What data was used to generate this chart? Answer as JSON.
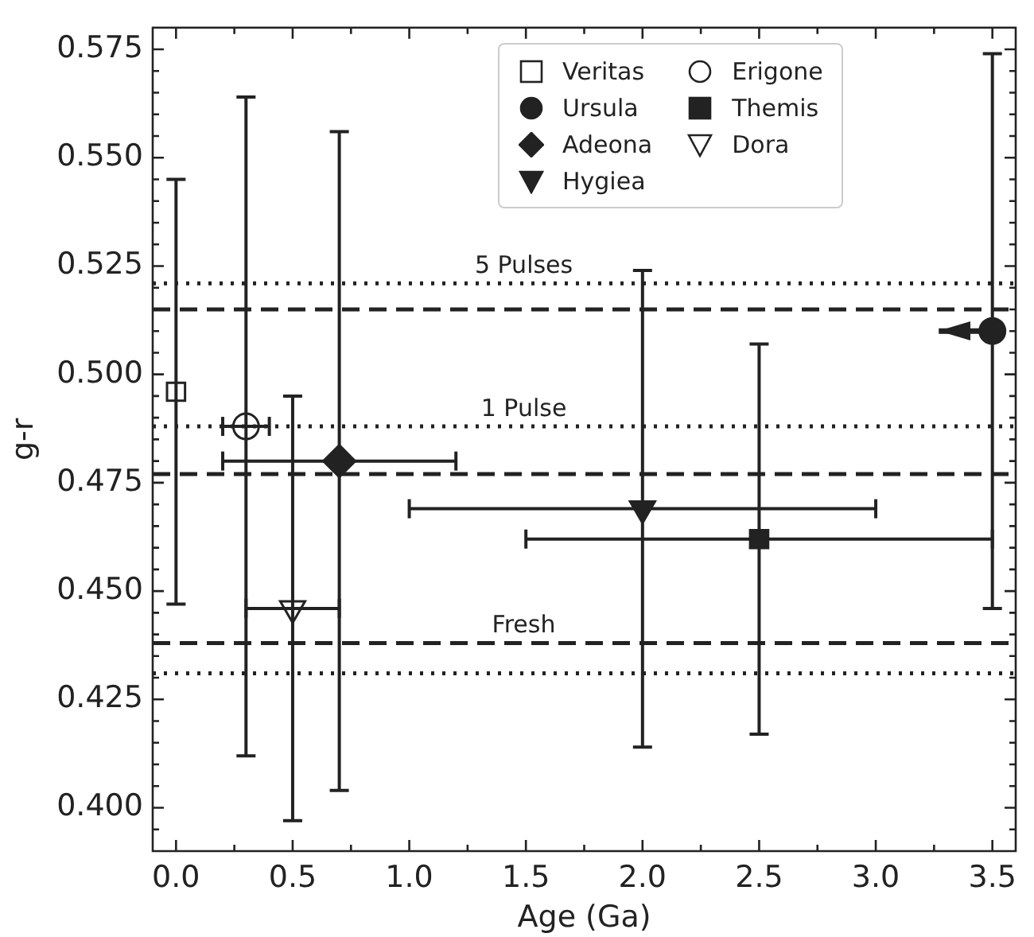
{
  "chart_data": {
    "type": "scatter",
    "xlabel": "Age (Ga)",
    "ylabel": "g-r",
    "xlim": [
      -0.1,
      3.6
    ],
    "xticks": [
      {
        "value": 0,
        "label": "0.0"
      },
      {
        "value": 0.25,
        "label": null
      },
      {
        "value": 0.5,
        "label": "0.5"
      },
      {
        "value": 0.75,
        "label": null
      },
      {
        "value": 1,
        "label": "1.0"
      },
      {
        "value": 1.25,
        "label": null
      },
      {
        "value": 1.5,
        "label": "1.5"
      },
      {
        "value": 1.75,
        "label": null
      },
      {
        "value": 2,
        "label": "2.0"
      },
      {
        "value": 2.25,
        "label": null
      },
      {
        "value": 2.5,
        "label": "2.5"
      },
      {
        "value": 2.75,
        "label": null
      },
      {
        "value": 3,
        "label": "3.0"
      },
      {
        "value": 3.25,
        "label": null
      },
      {
        "value": 3.5,
        "label": "3.5"
      }
    ],
    "ylim": [
      0.39,
      0.58
    ],
    "yticks": [
      {
        "value": 0.395,
        "label": null
      },
      {
        "value": 0.4,
        "label": "0.400"
      },
      {
        "value": 0.405,
        "label": null
      },
      {
        "value": 0.41,
        "label": null
      },
      {
        "value": 0.415,
        "label": null
      },
      {
        "value": 0.42,
        "label": null
      },
      {
        "value": 0.425,
        "label": "0.425"
      },
      {
        "value": 0.43,
        "label": null
      },
      {
        "value": 0.435,
        "label": null
      },
      {
        "value": 0.44,
        "label": null
      },
      {
        "value": 0.445,
        "label": null
      },
      {
        "value": 0.45,
        "label": "0.450"
      },
      {
        "value": 0.455,
        "label": null
      },
      {
        "value": 0.46,
        "label": null
      },
      {
        "value": 0.465,
        "label": null
      },
      {
        "value": 0.47,
        "label": null
      },
      {
        "value": 0.475,
        "label": "0.475"
      },
      {
        "value": 0.48,
        "label": null
      },
      {
        "value": 0.485,
        "label": null
      },
      {
        "value": 0.49,
        "label": null
      },
      {
        "value": 0.495,
        "label": null
      },
      {
        "value": 0.5,
        "label": "0.500"
      },
      {
        "value": 0.505,
        "label": null
      },
      {
        "value": 0.51,
        "label": null
      },
      {
        "value": 0.515,
        "label": null
      },
      {
        "value": 0.52,
        "label": null
      },
      {
        "value": 0.525,
        "label": "0.525"
      },
      {
        "value": 0.53,
        "label": null
      },
      {
        "value": 0.535,
        "label": null
      },
      {
        "value": 0.54,
        "label": null
      },
      {
        "value": 0.545,
        "label": null
      },
      {
        "value": 0.55,
        "label": "0.550"
      },
      {
        "value": 0.555,
        "label": null
      },
      {
        "value": 0.56,
        "label": null
      },
      {
        "value": 0.565,
        "label": null
      },
      {
        "value": 0.57,
        "label": null
      },
      {
        "value": 0.575,
        "label": "0.575"
      }
    ],
    "grid": false,
    "legend": "top",
    "series": [
      {
        "name": "Veritas",
        "color": "#222222",
        "marker": "square_open",
        "x": [
          0
        ],
        "values": [
          0.496
        ],
        "errors": [
          0.049
        ]
      },
      {
        "name": "Ursula",
        "color": "#222222",
        "marker": "circle",
        "x": [
          3.5
        ],
        "values": [
          0.51
        ],
        "errors": [
          0.064
        ],
        "xerrors": [
          [
            3.27,
            3.5
          ]
        ]
      },
      {
        "name": "Adeona",
        "color": "#222222",
        "marker": "diamond",
        "x": [
          0.7
        ],
        "values": [
          0.48
        ],
        "errors": [
          0.076
        ],
        "xerrors": [
          0.5
        ]
      },
      {
        "name": "Hygiea",
        "color": "#222222",
        "marker": "triangle_down",
        "x": [
          2
        ],
        "values": [
          0.469
        ],
        "errors": [
          0.055
        ],
        "xerrors": [
          1
        ]
      },
      {
        "name": "Erigone",
        "color": "#222222",
        "marker": "circle_open",
        "x": [
          0.3
        ],
        "values": [
          0.488
        ],
        "errors": [
          0.076
        ],
        "xerrors": [
          0.1
        ]
      },
      {
        "name": "Themis",
        "color": "#222222",
        "marker": "square",
        "x": [
          2.5
        ],
        "values": [
          0.462
        ],
        "errors": [
          0.045
        ],
        "xerrors": [
          1
        ]
      },
      {
        "name": "Dora",
        "color": "#222222",
        "marker": "triangle_down_open",
        "x": [
          0.5
        ],
        "values": [
          0.446
        ],
        "errors": [
          0.049
        ],
        "xerrors": [
          0.2
        ]
      }
    ],
    "ref_lines": [
      {
        "axis": "y",
        "value": 0.521,
        "label": "5 Pulses",
        "line_style": "dotted",
        "color": "#222222"
      },
      {
        "axis": "y",
        "value": 0.515,
        "label": null,
        "line_style": "dashed",
        "color": "#222222"
      },
      {
        "axis": "y",
        "value": 0.488,
        "label": "1 Pulse",
        "line_style": "dotted",
        "color": "#222222"
      },
      {
        "axis": "y",
        "value": 0.477,
        "label": null,
        "line_style": "dashed",
        "color": "#222222"
      },
      {
        "axis": "y",
        "value": 0.438,
        "label": "Fresh",
        "line_style": "dashed",
        "color": "#222222"
      },
      {
        "axis": "y",
        "value": 0.431,
        "label": null,
        "line_style": "dotted",
        "color": "#222222"
      }
    ]
  }
}
